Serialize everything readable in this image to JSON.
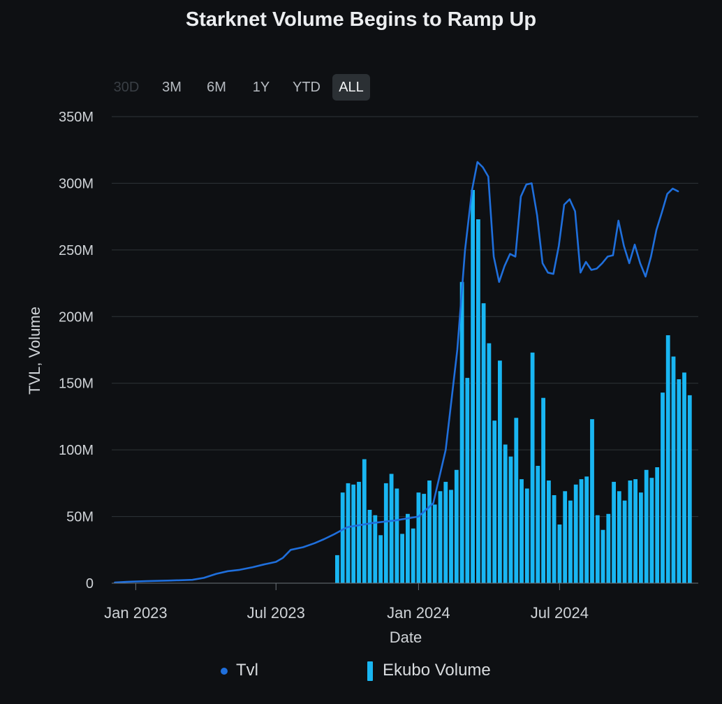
{
  "chart_data": {
    "type": "bar+line",
    "title": "Starknet Volume Begins to Ramp Up",
    "xlabel": "Date",
    "ylabel": "TVL, Volume",
    "ylim": [
      0,
      350000000
    ],
    "y_ticks": [
      0,
      50000000,
      100000000,
      150000000,
      200000000,
      250000000,
      300000000,
      350000000
    ],
    "y_tick_labels": [
      "0",
      "50M",
      "100M",
      "150M",
      "200M",
      "250M",
      "300M",
      "350M"
    ],
    "x_range": [
      "2022-12-01",
      "2024-12-27"
    ],
    "x_ticks": [
      {
        "date": "2023-01-01",
        "label": "Jan 2023"
      },
      {
        "date": "2023-07-01",
        "label": "Jul 2023"
      },
      {
        "date": "2024-01-01",
        "label": "Jan 2024"
      },
      {
        "date": "2024-07-01",
        "label": "Jul 2024"
      }
    ],
    "grid": true,
    "legend_position": "bottom",
    "series": [
      {
        "name": "Tvl",
        "type": "line",
        "color": "#1f6fdc",
        "points": [
          [
            "2022-12-05",
            0.5
          ],
          [
            "2022-12-20",
            1
          ],
          [
            "2023-01-15",
            1.5
          ],
          [
            "2023-02-15",
            2
          ],
          [
            "2023-03-15",
            2.5
          ],
          [
            "2023-03-30",
            4
          ],
          [
            "2023-04-15",
            7
          ],
          [
            "2023-04-30",
            9
          ],
          [
            "2023-05-15",
            10
          ],
          [
            "2023-06-01",
            12
          ],
          [
            "2023-06-15",
            14
          ],
          [
            "2023-07-01",
            16
          ],
          [
            "2023-07-10",
            19
          ],
          [
            "2023-07-20",
            25
          ],
          [
            "2023-08-05",
            27
          ],
          [
            "2023-08-20",
            30
          ],
          [
            "2023-09-01",
            33
          ],
          [
            "2023-09-15",
            37
          ],
          [
            "2023-10-01",
            42
          ],
          [
            "2023-11-01",
            45
          ],
          [
            "2023-12-01",
            47
          ],
          [
            "2024-01-01",
            50
          ],
          [
            "2024-01-20",
            60
          ],
          [
            "2024-02-05",
            100
          ],
          [
            "2024-02-20",
            175
          ],
          [
            "2024-03-01",
            250
          ],
          [
            "2024-03-10",
            295
          ],
          [
            "2024-03-17",
            316
          ],
          [
            "2024-03-24",
            312
          ],
          [
            "2024-03-31",
            305
          ],
          [
            "2024-04-07",
            245
          ],
          [
            "2024-04-14",
            226
          ],
          [
            "2024-04-21",
            238
          ],
          [
            "2024-04-28",
            247
          ],
          [
            "2024-05-05",
            245
          ],
          [
            "2024-05-12",
            290
          ],
          [
            "2024-05-19",
            299
          ],
          [
            "2024-05-26",
            300
          ],
          [
            "2024-06-02",
            276
          ],
          [
            "2024-06-09",
            240
          ],
          [
            "2024-06-16",
            233
          ],
          [
            "2024-06-23",
            232
          ],
          [
            "2024-06-30",
            253
          ],
          [
            "2024-07-07",
            284
          ],
          [
            "2024-07-14",
            288
          ],
          [
            "2024-07-21",
            279
          ],
          [
            "2024-07-28",
            233
          ],
          [
            "2024-08-04",
            241
          ],
          [
            "2024-08-11",
            235
          ],
          [
            "2024-08-18",
            236
          ],
          [
            "2024-08-25",
            240
          ],
          [
            "2024-09-01",
            245
          ],
          [
            "2024-09-08",
            246
          ],
          [
            "2024-09-15",
            272
          ],
          [
            "2024-09-22",
            253
          ],
          [
            "2024-09-29",
            240
          ],
          [
            "2024-10-06",
            254
          ],
          [
            "2024-10-13",
            240
          ],
          [
            "2024-10-20",
            230
          ],
          [
            "2024-10-27",
            245
          ],
          [
            "2024-11-03",
            265
          ],
          [
            "2024-11-10",
            278
          ],
          [
            "2024-11-17",
            292
          ],
          [
            "2024-11-24",
            296
          ],
          [
            "2024-12-01",
            294
          ]
        ],
        "unit": "M"
      },
      {
        "name": "Ekubo Volume",
        "type": "bar",
        "color": "#19b6f2",
        "bar_interval": "weekly",
        "bars": [
          [
            "2023-09-18",
            21
          ],
          [
            "2023-09-25",
            68
          ],
          [
            "2023-10-02",
            75
          ],
          [
            "2023-10-09",
            74
          ],
          [
            "2023-10-16",
            76
          ],
          [
            "2023-10-23",
            93
          ],
          [
            "2023-10-30",
            55
          ],
          [
            "2023-11-06",
            51
          ],
          [
            "2023-11-13",
            36
          ],
          [
            "2023-11-20",
            75
          ],
          [
            "2023-11-27",
            82
          ],
          [
            "2023-12-04",
            71
          ],
          [
            "2023-12-11",
            37
          ],
          [
            "2023-12-18",
            52
          ],
          [
            "2023-12-25",
            41
          ],
          [
            "2024-01-01",
            68
          ],
          [
            "2024-01-08",
            67
          ],
          [
            "2024-01-15",
            77
          ],
          [
            "2024-01-22",
            59
          ],
          [
            "2024-01-29",
            69
          ],
          [
            "2024-02-05",
            76
          ],
          [
            "2024-02-12",
            70
          ],
          [
            "2024-02-19",
            85
          ],
          [
            "2024-02-26",
            226
          ],
          [
            "2024-03-04",
            154
          ],
          [
            "2024-03-11",
            295
          ],
          [
            "2024-03-18",
            273
          ],
          [
            "2024-03-25",
            210
          ],
          [
            "2024-04-01",
            180
          ],
          [
            "2024-04-08",
            122
          ],
          [
            "2024-04-15",
            167
          ],
          [
            "2024-04-22",
            104
          ],
          [
            "2024-04-29",
            95
          ],
          [
            "2024-05-06",
            124
          ],
          [
            "2024-05-13",
            78
          ],
          [
            "2024-05-20",
            71
          ],
          [
            "2024-05-27",
            173
          ],
          [
            "2024-06-03",
            88
          ],
          [
            "2024-06-10",
            139
          ],
          [
            "2024-06-17",
            77
          ],
          [
            "2024-06-24",
            66
          ],
          [
            "2024-07-01",
            44
          ],
          [
            "2024-07-08",
            69
          ],
          [
            "2024-07-15",
            62
          ],
          [
            "2024-07-22",
            74
          ],
          [
            "2024-07-29",
            78
          ],
          [
            "2024-08-05",
            80
          ],
          [
            "2024-08-12",
            123
          ],
          [
            "2024-08-19",
            51
          ],
          [
            "2024-08-26",
            40
          ],
          [
            "2024-09-02",
            52
          ],
          [
            "2024-09-09",
            76
          ],
          [
            "2024-09-16",
            69
          ],
          [
            "2024-09-23",
            62
          ],
          [
            "2024-09-30",
            77
          ],
          [
            "2024-10-07",
            78
          ],
          [
            "2024-10-14",
            68
          ],
          [
            "2024-10-21",
            85
          ],
          [
            "2024-10-28",
            79
          ],
          [
            "2024-11-04",
            87
          ],
          [
            "2024-11-11",
            143
          ],
          [
            "2024-11-18",
            186
          ],
          [
            "2024-11-25",
            170
          ],
          [
            "2024-12-02",
            153
          ],
          [
            "2024-12-09",
            158
          ],
          [
            "2024-12-16",
            141
          ]
        ],
        "unit": "M"
      }
    ]
  },
  "range_selector": {
    "buttons": [
      {
        "label": "30D",
        "state": "disabled"
      },
      {
        "label": "3M",
        "state": "normal"
      },
      {
        "label": "6M",
        "state": "normal"
      },
      {
        "label": "1Y",
        "state": "normal"
      },
      {
        "label": "YTD",
        "state": "normal"
      },
      {
        "label": "ALL",
        "state": "active"
      }
    ]
  },
  "legend": {
    "items": [
      {
        "label": "Tvl",
        "marker": "dot",
        "color": "#1f6fdc"
      },
      {
        "label": "Ekubo Volume",
        "marker": "bar",
        "color": "#19b6f2"
      }
    ]
  },
  "colors": {
    "background": "#0e1013",
    "grid": "#2f3439",
    "axis": "#6c737a",
    "active_button": "#2b3034"
  }
}
